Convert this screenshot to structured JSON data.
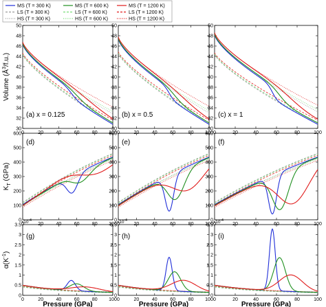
{
  "colors": {
    "blue": "#1f2ed8",
    "green": "#1f8f1f",
    "red": "#e01b1b",
    "light_green": "#77dd77",
    "gray": "#9a9a9a"
  },
  "chart_data": {
    "type": "line",
    "legend": {
      "placement": "top",
      "entries": [
        {
          "label": "MS (T = 300 K)",
          "color": "blue",
          "style": "solid"
        },
        {
          "label": "MS (T = 600 K)",
          "color": "green",
          "style": "solid"
        },
        {
          "label": "MS (T = 1200 K)",
          "color": "red",
          "style": "solid"
        },
        {
          "label": "LS (T = 300 K)",
          "color": "gray",
          "style": "dashed"
        },
        {
          "label": "LS (T = 600 K)",
          "color": "light_green",
          "style": "dashed"
        },
        {
          "label": "LS (T = 1200 K)",
          "color": "red",
          "style": "dashed"
        },
        {
          "label": "HS (T = 300 K)",
          "color": "gray",
          "style": "dotted"
        },
        {
          "label": "HS (T = 600 K)",
          "color": "light_green",
          "style": "dotted"
        },
        {
          "label": "HS (T = 1200 K)",
          "color": "red",
          "style": "dotted"
        }
      ]
    },
    "xlabel": "Pressure (GPa)",
    "xlim": [
      0,
      100
    ],
    "x_ticks": [
      "0",
      "20",
      "40",
      "60",
      "80",
      "100"
    ],
    "rows": [
      {
        "ylabel_main": "Volume (Å",
        "ylabel_sup": "3",
        "ylabel_tail": "/f.u.)",
        "ylim": [
          30,
          50
        ],
        "y_ticks": [
          "30",
          "32",
          "34",
          "36",
          "38",
          "40",
          "42",
          "44",
          "46",
          "48",
          "50"
        ],
        "multiplier": ""
      },
      {
        "ylabel_main": "K",
        "ylabel_sub": "T",
        "ylabel_tail": " (GPa)",
        "ylim": [
          0,
          600
        ],
        "y_ticks": [
          "0",
          "100",
          "200",
          "300",
          "400",
          "500",
          "600"
        ],
        "multiplier": ""
      },
      {
        "ylabel_main": "α(K",
        "ylabel_sup": "-1",
        "ylabel_tail": ")",
        "ylim": [
          0,
          3.5
        ],
        "y_ticks": [
          "0",
          "0.5",
          "1",
          "1.5",
          "2",
          "2.5",
          "3",
          "3.5"
        ],
        "multiplier": "x10",
        "multiplier_exp": "-4"
      }
    ],
    "columns": [
      {
        "x_value": "0.125",
        "labels": [
          "(a) x = 0.125",
          "(d)",
          "(g)"
        ],
        "transition": {
          "blue": [
            54,
            4
          ],
          "green": [
            60,
            7
          ],
          "red": [
            70,
            14
          ]
        },
        "ms_volume_p0": 46.4,
        "alpha_peak": {
          "blue": 0.5,
          "green": 0.35,
          "red": 0.22
        },
        "kt_dip": {
          "blue": 185,
          "green": 255,
          "red": 310
        }
      },
      {
        "x_value": "0.5",
        "labels": [
          "(b) x = 0.5",
          "(e)",
          "(h)"
        ],
        "transition": {
          "blue": [
            56,
            3
          ],
          "green": [
            62,
            6
          ],
          "red": [
            72,
            12
          ]
        },
        "ms_volume_p0": 47.4,
        "alpha_peak": {
          "blue": 1.65,
          "green": 0.95,
          "red": 0.55
        },
        "kt_dip": {
          "blue": 60,
          "green": 140,
          "red": 200
        }
      },
      {
        "x_value": "1",
        "labels": [
          "(c) x = 1",
          "(f)",
          "(i)"
        ],
        "transition": {
          "blue": [
            56,
            2.5
          ],
          "green": [
            63,
            5
          ],
          "red": [
            74,
            10
          ]
        },
        "ms_volume_p0": 48.2,
        "alpha_peak": {
          "blue": 3.05,
          "green": 1.65,
          "red": 0.82
        },
        "kt_dip": {
          "blue": 40,
          "green": 70,
          "red": 110
        }
      }
    ],
    "grid": false
  }
}
